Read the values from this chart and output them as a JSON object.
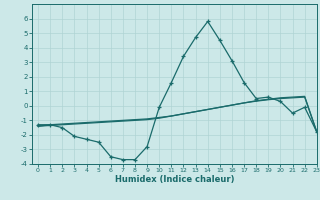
{
  "xlabel": "Humidex (Indice chaleur)",
  "x": [
    0,
    1,
    2,
    3,
    4,
    5,
    6,
    7,
    8,
    9,
    10,
    11,
    12,
    13,
    14,
    15,
    16,
    17,
    18,
    19,
    20,
    21,
    22,
    23
  ],
  "line1": [
    -1.3,
    -1.3,
    -1.5,
    -2.1,
    -2.3,
    -2.5,
    -3.5,
    -3.7,
    -3.7,
    -2.8,
    -0.1,
    1.6,
    3.4,
    4.7,
    5.8,
    4.5,
    3.1,
    1.6,
    0.5,
    0.6,
    0.3,
    -0.5,
    -0.1,
    -1.8
  ],
  "line2": [
    -1.4,
    -1.3,
    -1.25,
    -1.2,
    -1.15,
    -1.1,
    -1.05,
    -1.0,
    -0.95,
    -0.9,
    -0.8,
    -0.7,
    -0.55,
    -0.4,
    -0.25,
    -0.1,
    0.05,
    0.2,
    0.35,
    0.45,
    0.55,
    0.6,
    0.65,
    -1.8
  ],
  "line3": [
    -1.4,
    -1.35,
    -1.3,
    -1.25,
    -1.2,
    -1.15,
    -1.1,
    -1.05,
    -1.0,
    -0.95,
    -0.85,
    -0.7,
    -0.55,
    -0.4,
    -0.25,
    -0.1,
    0.05,
    0.2,
    0.32,
    0.42,
    0.5,
    0.55,
    0.6,
    -1.8
  ],
  "line_color": "#1a6b6b",
  "bg_color": "#cce8e8",
  "grid_color": "#b0d4d4",
  "ylim": [
    -4,
    7
  ],
  "xlim": [
    -0.5,
    23
  ],
  "yticks": [
    -4,
    -3,
    -2,
    -1,
    0,
    1,
    2,
    3,
    4,
    5,
    6
  ],
  "xticks": [
    0,
    1,
    2,
    3,
    4,
    5,
    6,
    7,
    8,
    9,
    10,
    11,
    12,
    13,
    14,
    15,
    16,
    17,
    18,
    19,
    20,
    21,
    22,
    23
  ],
  "marker_size": 3.5,
  "linewidth": 0.9
}
